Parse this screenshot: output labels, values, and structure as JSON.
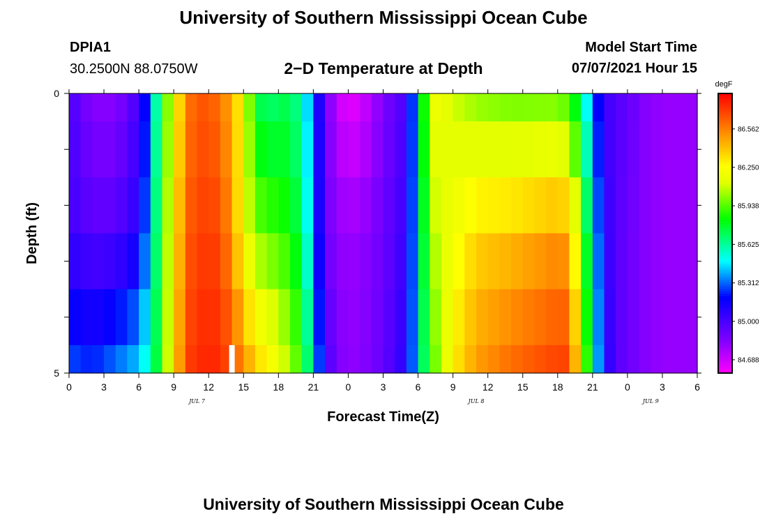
{
  "header": {
    "title": "University of Southern Mississippi Ocean Cube",
    "station": "DPIA1",
    "coords": "30.2500N  88.0750W",
    "plot_title": "2−D Temperature at Depth",
    "model_label": "Model Start Time",
    "model_time": "07/07/2021 Hour 15"
  },
  "footer": {
    "title": "University of Southern Mississippi Ocean Cube"
  },
  "chart_data": {
    "type": "heatmap",
    "title": "2-D Temperature at Depth",
    "xlabel": "Forecast Time(Z)",
    "ylabel": "Depth (ft)",
    "x_tick_labels": [
      "0",
      "3",
      "6",
      "9",
      "12",
      "15",
      "18",
      "21",
      "0",
      "3",
      "6",
      "9",
      "12",
      "15",
      "18",
      "21",
      "0",
      "3",
      "6"
    ],
    "x_date_labels": [
      {
        "label": "JUL 7",
        "hour": 11
      },
      {
        "label": "JUL 8",
        "hour": 35
      },
      {
        "label": "JUL 9",
        "hour": 50
      }
    ],
    "x_range_hours": [
      0,
      54
    ],
    "y_range_ft": [
      0,
      5
    ],
    "y_tick_labels": [
      "0",
      "5"
    ],
    "unit": "degF",
    "color_range": [
      84.58,
      86.85
    ],
    "colorbar_ticks": [
      "86.562",
      "86.250",
      "85.938",
      "85.625",
      "85.312",
      "85.000",
      "84.688"
    ],
    "colorbar_tick_values": [
      86.562,
      86.25,
      85.938,
      85.625,
      85.312,
      85.0,
      84.688
    ],
    "depth_rows_ft": [
      0.25,
      1.0,
      2.0,
      3.0,
      4.0,
      4.75
    ],
    "temperature_profiles": {
      "hours": [
        0,
        2,
        4,
        6,
        7,
        8,
        9,
        10,
        11,
        12,
        13,
        14,
        15,
        16,
        17,
        18,
        19,
        20,
        21,
        22,
        23,
        24,
        25,
        27,
        29,
        30,
        31,
        32,
        33,
        35,
        38,
        42,
        43,
        44,
        45,
        46,
        47,
        48,
        49,
        51,
        54
      ],
      "surface": [
        85.0,
        84.82,
        84.82,
        85.0,
        85.35,
        85.85,
        86.15,
        86.55,
        86.65,
        86.65,
        86.58,
        86.45,
        86.22,
        85.75,
        85.65,
        85.7,
        85.72,
        85.58,
        85.3,
        84.92,
        84.7,
        84.62,
        84.65,
        84.85,
        85.0,
        85.5,
        86.2,
        86.18,
        86.1,
        86.0,
        85.95,
        85.95,
        85.88,
        85.65,
        85.3,
        85.05,
        84.95,
        84.95,
        84.85,
        84.8,
        84.8
      ],
      "middle": [
        85.02,
        84.95,
        84.96,
        85.1,
        85.45,
        85.9,
        86.25,
        86.62,
        86.7,
        86.72,
        86.68,
        86.5,
        86.2,
        86.0,
        85.95,
        85.9,
        85.85,
        85.7,
        85.35,
        84.9,
        84.82,
        84.8,
        84.8,
        84.9,
        85.05,
        85.5,
        86.05,
        86.12,
        86.2,
        86.35,
        86.4,
        86.5,
        86.45,
        86.0,
        85.5,
        85.1,
        84.95,
        84.92,
        84.85,
        84.8,
        84.8
      ],
      "bottom": [
        85.3,
        85.25,
        85.35,
        85.45,
        85.6,
        85.9,
        86.3,
        86.7,
        86.75,
        86.78,
        86.75,
        86.68,
        86.55,
        86.4,
        86.3,
        86.2,
        86.05,
        85.9,
        85.5,
        85.05,
        84.85,
        84.82,
        84.82,
        84.92,
        85.1,
        85.5,
        85.9,
        86.05,
        86.3,
        86.5,
        86.62,
        86.72,
        86.72,
        86.2,
        85.6,
        85.15,
        84.95,
        84.92,
        84.85,
        84.8,
        84.8
      ]
    },
    "missing_marker": {
      "hour": 14,
      "depth_ft": [
        4.5,
        5.0
      ]
    }
  }
}
